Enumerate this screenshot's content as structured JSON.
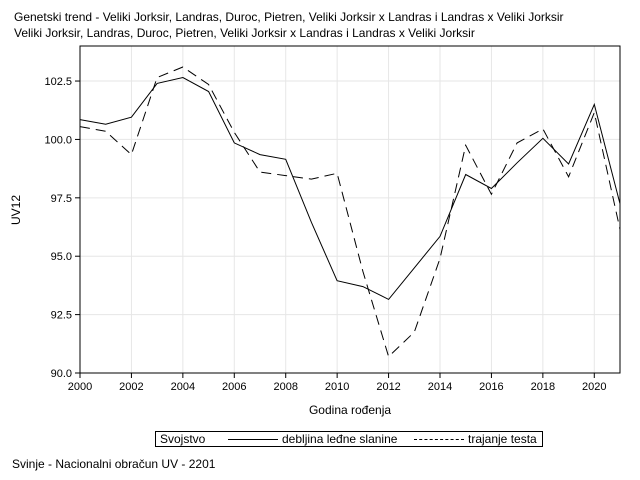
{
  "title": {
    "line1": "Genetski trend - Veliki Jorksir, Landras, Duroc, Pietren, Veliki Jorksir x Landras i Landras x Veliki Jorksir",
    "line2": "Veliki Jorksir, Landras, Duroc, Pietren, Veliki Jorksir x Landras i Landras x Veliki Jorksir"
  },
  "footnote": "Svinje - Nacionalni obračun UV - 2201",
  "legend": {
    "title": "Svojstvo",
    "items": [
      "debljina leđne slanine",
      "trajanje testa"
    ]
  },
  "chart_data": {
    "type": "line",
    "xlabel": "Godina rođenja",
    "ylabel": "UV12",
    "xlim": [
      2000,
      2021
    ],
    "ylim": [
      90.0,
      104.0
    ],
    "x_ticks": [
      "2000",
      "2002",
      "2004",
      "2006",
      "2008",
      "2010",
      "2012",
      "2014",
      "2016",
      "2018",
      "2020"
    ],
    "y_ticks": [
      "90.0",
      "92.5",
      "95.0",
      "97.5",
      "100.0",
      "102.5"
    ],
    "grid": true,
    "legend_position": "bottom",
    "x": [
      2000,
      2001,
      2002,
      2003,
      2004,
      2005,
      2006,
      2007,
      2008,
      2009,
      2010,
      2011,
      2012,
      2013,
      2014,
      2015,
      2016,
      2017,
      2018,
      2019,
      2020,
      2021
    ],
    "series": [
      {
        "name": "debljina leđne slanine",
        "style": "solid",
        "values": [
          100.85,
          100.65,
          100.95,
          102.4,
          102.65,
          102.05,
          99.85,
          99.35,
          99.15,
          96.45,
          93.95,
          93.7,
          93.15,
          94.5,
          95.85,
          98.5,
          97.9,
          99.0,
          100.05,
          98.95,
          101.5,
          97.25
        ]
      },
      {
        "name": "trajanje testa",
        "style": "dashed",
        "values": [
          100.55,
          100.35,
          99.35,
          102.65,
          103.1,
          102.35,
          100.3,
          98.6,
          98.45,
          98.3,
          98.55,
          94.35,
          90.7,
          91.75,
          94.9,
          99.75,
          97.65,
          99.85,
          100.45,
          98.4,
          101.15,
          96.15
        ]
      }
    ]
  }
}
